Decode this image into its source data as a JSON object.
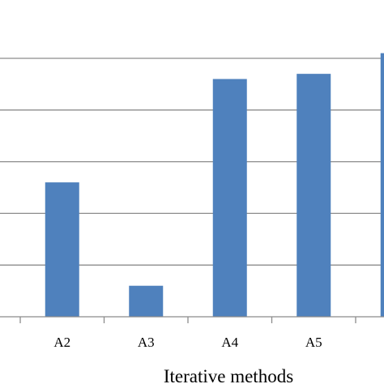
{
  "chart_data": {
    "type": "bar",
    "categories": [
      "A2",
      "A3",
      "A4",
      "A5",
      ""
    ],
    "values": [
      2.6,
      0.6,
      4.6,
      4.7,
      5.1
    ],
    "xlabel": "Iterative methods",
    "ylabel": "",
    "ylim": [
      0,
      5
    ],
    "grid": true,
    "legend": "none",
    "bar_color": "#4F81BD",
    "grid_color": "#8C8C8C",
    "axis_color": "#8C8C8C"
  }
}
